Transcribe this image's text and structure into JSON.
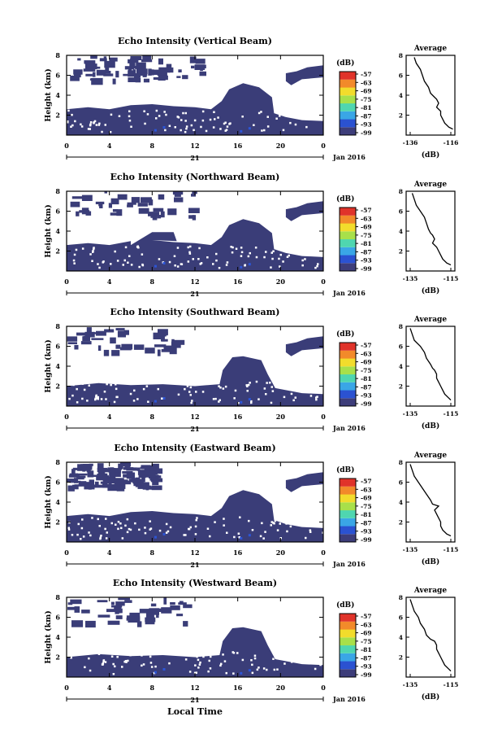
{
  "figure": {
    "xlabel": "Local Time",
    "date_label": "Jan 2016",
    "day_label": "21",
    "x_ticks": [
      "0",
      "4",
      "8",
      "12",
      "16",
      "20",
      "0"
    ],
    "height_ticks": [
      "2",
      "4",
      "6",
      "8"
    ],
    "colorbar_unit": "(dB)",
    "colorbar_ticks": [
      "-57",
      "-63",
      "-69",
      "-75",
      "-81",
      "-87",
      "-93",
      "-99"
    ],
    "colorbar_colors": [
      "#3d3d7a",
      "#2b52d1",
      "#3aa6e6",
      "#4fd6b0",
      "#a8e04a",
      "#f2dc2c",
      "#f28a2a",
      "#e0332a"
    ],
    "average_title": "Average",
    "average_unit": "(dB)"
  },
  "chart_data": [
    {
      "type": "heatmap",
      "title": "Echo Intensity (Vertical Beam)",
      "ylabel": "Height (km)",
      "xlim": [
        0,
        24
      ],
      "ylim": [
        0,
        8
      ],
      "color_range": [
        -99,
        -57
      ],
      "average": {
        "title": "Average",
        "x_ticks": [
          "-136",
          "-116"
        ],
        "xlim": [
          -138,
          -114
        ],
        "x": [
          -134,
          -133,
          -131,
          -130,
          -129,
          -127,
          -126,
          -124,
          -123,
          -122,
          -123,
          -121,
          -121,
          -120,
          -119,
          -117,
          -115
        ],
        "y": [
          7.8,
          7.2,
          6.6,
          6.0,
          5.4,
          4.8,
          4.2,
          3.8,
          3.6,
          3.2,
          2.8,
          2.4,
          2.0,
          1.6,
          1.2,
          0.8,
          0.6
        ],
        "xlabel": "(dB)"
      }
    },
    {
      "type": "heatmap",
      "title": "Echo Intensity (Northward Beam)",
      "ylabel": "Height (km)",
      "xlim": [
        0,
        24
      ],
      "ylim": [
        0,
        8
      ],
      "color_range": [
        -99,
        -57
      ],
      "average": {
        "title": "Average",
        "x_ticks": [
          "-135",
          "-115"
        ],
        "xlim": [
          -137,
          -113
        ],
        "x": [
          -134,
          -133,
          -132,
          -130,
          -128,
          -127,
          -126,
          -125,
          -124,
          -123,
          -124,
          -122,
          -121,
          -120,
          -119,
          -117,
          -115
        ],
        "y": [
          7.8,
          7.2,
          6.6,
          6.0,
          5.4,
          4.8,
          4.2,
          3.8,
          3.6,
          3.2,
          2.8,
          2.4,
          2.0,
          1.6,
          1.2,
          0.8,
          0.6
        ],
        "xlabel": "(dB)"
      }
    },
    {
      "type": "heatmap",
      "title": "Echo Intensity (Southward Beam)",
      "ylabel": "Height (km)",
      "xlim": [
        0,
        24
      ],
      "ylim": [
        0,
        8
      ],
      "color_range": [
        -99,
        -57
      ],
      "average": {
        "title": "Average",
        "x_ticks": [
          "-135",
          "-115"
        ],
        "xlim": [
          -137,
          -113
        ],
        "x": [
          -135,
          -134,
          -133,
          -130,
          -128,
          -127,
          -125,
          -124,
          -123,
          -122,
          -122,
          -121,
          -120,
          -119,
          -118,
          -116,
          -115
        ],
        "y": [
          7.8,
          7.2,
          6.6,
          6.0,
          5.4,
          4.8,
          4.2,
          3.8,
          3.6,
          3.2,
          2.8,
          2.4,
          2.0,
          1.6,
          1.2,
          0.8,
          0.6
        ],
        "xlabel": "(dB)"
      }
    },
    {
      "type": "heatmap",
      "title": "Echo Intensity (Eastward Beam)",
      "ylabel": "Height (km)",
      "xlim": [
        0,
        24
      ],
      "ylim": [
        0,
        8
      ],
      "color_range": [
        -99,
        -57
      ],
      "average": {
        "title": "Average",
        "x_ticks": [
          "-135",
          "-115"
        ],
        "xlim": [
          -137,
          -113
        ],
        "x": [
          -135,
          -134,
          -133,
          -131,
          -129,
          -127,
          -125,
          -124,
          -121,
          -123,
          -122,
          -121,
          -120,
          -120,
          -119,
          -117,
          -115
        ],
        "y": [
          7.8,
          7.2,
          6.6,
          6.0,
          5.4,
          4.8,
          4.2,
          3.8,
          3.6,
          3.2,
          2.8,
          2.4,
          2.0,
          1.6,
          1.2,
          0.8,
          0.6
        ],
        "xlabel": "(dB)"
      }
    },
    {
      "type": "heatmap",
      "title": "Echo Intensity (Westward Beam)",
      "ylabel": "Height (km)",
      "xlim": [
        0,
        24
      ],
      "ylim": [
        0,
        8
      ],
      "color_range": [
        -99,
        -57
      ],
      "average": {
        "title": "Average",
        "x_ticks": [
          "-135",
          "-115"
        ],
        "xlim": [
          -137,
          -113
        ],
        "x": [
          -135,
          -134,
          -133,
          -131,
          -130,
          -128,
          -127,
          -125,
          -123,
          -122,
          -122,
          -121,
          -120,
          -119,
          -118,
          -116,
          -115
        ],
        "y": [
          7.8,
          7.2,
          6.6,
          6.0,
          5.4,
          4.8,
          4.2,
          3.8,
          3.6,
          3.2,
          2.8,
          2.4,
          2.0,
          1.6,
          1.2,
          0.8,
          0.6
        ],
        "xlabel": "(dB)"
      }
    }
  ]
}
